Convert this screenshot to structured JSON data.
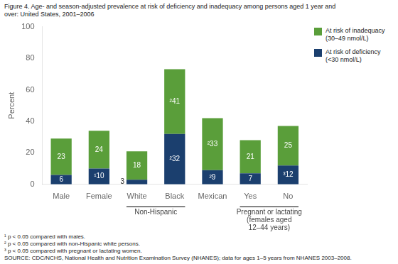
{
  "chart_data": {
    "type": "bar",
    "title": "Figure 4. Age- and season-adjusted prevalence at risk of deficiency and inadequacy among persons aged 1 year and\nover: United States, 2001–2006",
    "ylabel": "Percent",
    "categories": [
      "Male",
      "Female",
      "White",
      "Black",
      "Mexican",
      "Yes",
      "No"
    ],
    "series": [
      {
        "name": "At risk of deficiency\n(<30 nmol/L)",
        "color": "#1b3f6e",
        "values": [
          6,
          10,
          3,
          32,
          9,
          7,
          12
        ],
        "value_labels": [
          "6",
          "¹10",
          "3",
          "²32",
          "²9",
          "7",
          "³12"
        ]
      },
      {
        "name": "At risk of inadequacy\n(30–49 nmol/L)",
        "color": "#5a9e3a",
        "values": [
          23,
          24,
          18,
          41,
          33,
          21,
          25
        ],
        "value_labels": [
          "23",
          "24",
          "18",
          "²41",
          "²33",
          "21",
          "25"
        ]
      }
    ],
    "stacked": true,
    "data_labels": true,
    "ylim": [
      0,
      100
    ],
    "yticks": [
      0,
      20,
      40,
      60,
      80,
      100
    ],
    "grid": false,
    "legend": "upper right",
    "groups": [
      {
        "label": "Non-Hispanic",
        "categories": [
          "White",
          "Black"
        ]
      },
      {
        "label": "Pregnant or lactating\n(females aged\n12–44 years)",
        "categories": [
          "Yes",
          "No"
        ]
      }
    ],
    "footnotes": [
      "¹ p < 0.05 compared with males.",
      "² p < 0.05 compared with non-Hispanic white persons.",
      "³ p < 0.05 compared with pregnant or lactating women.",
      "SOURCE: CDC/NCHS, National Health and Nutrition Examination Survey (NHANES); data for ages 1–5 years from NHANES 2003–2008."
    ]
  }
}
